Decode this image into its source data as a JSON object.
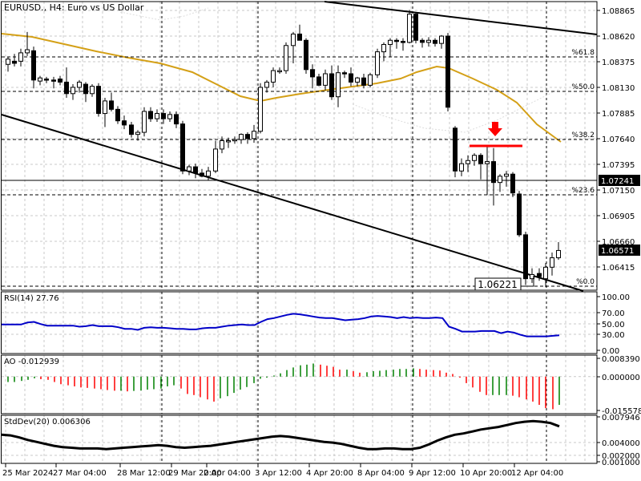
{
  "header": {
    "title": "EURUSD., H4:  Euro vs US Dollar"
  },
  "colors": {
    "background": "#ffffff",
    "grid": "#c8c8c8",
    "candle_bull": "#ffffff",
    "candle_bear": "#000000",
    "ma": "#d4a017",
    "rsi": "#0000c8",
    "ao_up": "#008000",
    "ao_down": "#ff0000",
    "stddev": "#000000",
    "arrow": "#ff0000"
  },
  "main_panel": {
    "price_axis": [
      "1.08865",
      "1.08620",
      "1.08375",
      "1.08130",
      "1.07885",
      "1.07640",
      "1.07395",
      "1.07150",
      "1.06905",
      "1.06660",
      "1.06415"
    ],
    "current_price_tag": "1.06571",
    "hline_tag": "1.07241",
    "low_label": "1.06221",
    "fib_levels": [
      {
        "label": "%61.8",
        "price": 1.0842
      },
      {
        "label": "%50.0",
        "price": 1.0809
      },
      {
        "label": "%38.2",
        "price": 1.0763
      },
      {
        "label": "%23.6",
        "price": 1.071
      },
      {
        "label": "%0.0",
        "price": 1.0623
      }
    ]
  },
  "rsi_panel": {
    "label": "RSI(14) 27.76",
    "axis": [
      "100.00",
      "70.00",
      "50.00",
      "30.00",
      "0.00"
    ]
  },
  "ao_panel": {
    "label": "AO -0.012939",
    "axis": [
      "0.008390",
      "0.000000",
      "-0.015578"
    ]
  },
  "stddev_panel": {
    "label": "StdDev(20) 0.006306",
    "axis": [
      "0.007946",
      "0.004000",
      "0.002000",
      "0.001000"
    ]
  },
  "time_axis": [
    "25 Mar 2024",
    "27 Mar 04:00",
    "28 Mar 12:00",
    "29 Mar 20:00",
    "2 Apr 04:00",
    "3 Apr 12:00",
    "4 Apr 20:00",
    "8 Apr 04:00",
    "9 Apr 12:00",
    "10 Apr 20:00",
    "12 Apr 04:00"
  ],
  "chart_data": [
    {
      "type": "candlestick",
      "title": "EURUSD., H4: Euro vs US Dollar",
      "xlabel": "Time",
      "ylabel": "Price",
      "ylim": [
        1.0618,
        1.0895
      ],
      "x_ticks": [
        "25 Mar 2024",
        "27 Mar 04:00",
        "28 Mar 12:00",
        "29 Mar 20:00",
        "2 Apr 04:00",
        "3 Apr 12:00",
        "4 Apr 20:00",
        "8 Apr 04:00",
        "9 Apr 12:00",
        "10 Apr 20:00",
        "12 Apr 04:00"
      ],
      "y_ticks": [
        1.08865,
        1.0862,
        1.08375,
        1.0813,
        1.07885,
        1.0764,
        1.07395,
        1.0715,
        1.06905,
        1.0666,
        1.06415
      ],
      "last_price": 1.06571,
      "horizontal_line": 1.07241,
      "annotated_low": 1.06221,
      "fibonacci": {
        "61.8": 1.0842,
        "50.0": 1.0809,
        "38.2": 1.0763,
        "23.6": 1.071,
        "0.0": 1.0623
      },
      "candles": [
        {
          "o": 1.0835,
          "h": 1.0842,
          "l": 1.0828,
          "c": 1.084
        },
        {
          "o": 1.0838,
          "h": 1.0845,
          "l": 1.0833,
          "c": 1.0836
        },
        {
          "o": 1.0838,
          "h": 1.085,
          "l": 1.0833,
          "c": 1.0846
        },
        {
          "o": 1.0846,
          "h": 1.0866,
          "l": 1.0843,
          "c": 1.0849
        },
        {
          "o": 1.0848,
          "h": 1.0852,
          "l": 1.0812,
          "c": 1.082
        },
        {
          "o": 1.0819,
          "h": 1.0824,
          "l": 1.0815,
          "c": 1.0822
        },
        {
          "o": 1.0821,
          "h": 1.0823,
          "l": 1.0817,
          "c": 1.082
        },
        {
          "o": 1.082,
          "h": 1.0823,
          "l": 1.0812,
          "c": 1.0819
        },
        {
          "o": 1.0821,
          "h": 1.0824,
          "l": 1.0815,
          "c": 1.0818
        },
        {
          "o": 1.0818,
          "h": 1.0832,
          "l": 1.0803,
          "c": 1.0807
        },
        {
          "o": 1.0807,
          "h": 1.0816,
          "l": 1.0801,
          "c": 1.0813
        },
        {
          "o": 1.0813,
          "h": 1.082,
          "l": 1.0808,
          "c": 1.0818
        },
        {
          "o": 1.0816,
          "h": 1.0818,
          "l": 1.0799,
          "c": 1.0807
        },
        {
          "o": 1.0807,
          "h": 1.0816,
          "l": 1.0804,
          "c": 1.0814
        },
        {
          "o": 1.0814,
          "h": 1.0817,
          "l": 1.0785,
          "c": 1.0788
        },
        {
          "o": 1.0788,
          "h": 1.0803,
          "l": 1.0775,
          "c": 1.08
        },
        {
          "o": 1.08,
          "h": 1.0808,
          "l": 1.079,
          "c": 1.0792
        },
        {
          "o": 1.0792,
          "h": 1.0795,
          "l": 1.0778,
          "c": 1.0781
        },
        {
          "o": 1.0781,
          "h": 1.0786,
          "l": 1.0773,
          "c": 1.0777
        },
        {
          "o": 1.0777,
          "h": 1.078,
          "l": 1.0765,
          "c": 1.0768
        },
        {
          "o": 1.0768,
          "h": 1.0772,
          "l": 1.0762,
          "c": 1.077
        },
        {
          "o": 1.077,
          "h": 1.0794,
          "l": 1.0766,
          "c": 1.079
        },
        {
          "o": 1.079,
          "h": 1.0794,
          "l": 1.078,
          "c": 1.0783
        },
        {
          "o": 1.0783,
          "h": 1.0792,
          "l": 1.078,
          "c": 1.0788
        },
        {
          "o": 1.0788,
          "h": 1.0792,
          "l": 1.0778,
          "c": 1.0783
        },
        {
          "o": 1.0783,
          "h": 1.079,
          "l": 1.078,
          "c": 1.0787
        },
        {
          "o": 1.0787,
          "h": 1.079,
          "l": 1.0774,
          "c": 1.0778
        },
        {
          "o": 1.0778,
          "h": 1.0781,
          "l": 1.073,
          "c": 1.0733
        },
        {
          "o": 1.0733,
          "h": 1.0739,
          "l": 1.0729,
          "c": 1.0737
        },
        {
          "o": 1.0737,
          "h": 1.074,
          "l": 1.0726,
          "c": 1.0731
        },
        {
          "o": 1.0731,
          "h": 1.0735,
          "l": 1.0727,
          "c": 1.0728
        },
        {
          "o": 1.0728,
          "h": 1.0737,
          "l": 1.0724,
          "c": 1.0733
        },
        {
          "o": 1.0733,
          "h": 1.0762,
          "l": 1.0731,
          "c": 1.0754
        },
        {
          "o": 1.0754,
          "h": 1.0766,
          "l": 1.075,
          "c": 1.0762
        },
        {
          "o": 1.0762,
          "h": 1.0765,
          "l": 1.0755,
          "c": 1.0762
        },
        {
          "o": 1.0762,
          "h": 1.0766,
          "l": 1.0759,
          "c": 1.0763
        },
        {
          "o": 1.0763,
          "h": 1.0769,
          "l": 1.0759,
          "c": 1.0768
        },
        {
          "o": 1.0768,
          "h": 1.077,
          "l": 1.0759,
          "c": 1.0764
        },
        {
          "o": 1.0764,
          "h": 1.0777,
          "l": 1.076,
          "c": 1.0771
        },
        {
          "o": 1.0771,
          "h": 1.0817,
          "l": 1.0769,
          "c": 1.0813
        },
        {
          "o": 1.0813,
          "h": 1.082,
          "l": 1.0808,
          "c": 1.0818
        },
        {
          "o": 1.0818,
          "h": 1.0832,
          "l": 1.0813,
          "c": 1.0829
        },
        {
          "o": 1.0829,
          "h": 1.0832,
          "l": 1.0826,
          "c": 1.0829
        },
        {
          "o": 1.0829,
          "h": 1.0856,
          "l": 1.0826,
          "c": 1.0853
        },
        {
          "o": 1.0853,
          "h": 1.0866,
          "l": 1.0836,
          "c": 1.0864
        },
        {
          "o": 1.0864,
          "h": 1.0873,
          "l": 1.0858,
          "c": 1.0858
        },
        {
          "o": 1.0858,
          "h": 1.086,
          "l": 1.0826,
          "c": 1.083
        },
        {
          "o": 1.083,
          "h": 1.0835,
          "l": 1.0812,
          "c": 1.0823
        },
        {
          "o": 1.0823,
          "h": 1.0826,
          "l": 1.0814,
          "c": 1.0815
        },
        {
          "o": 1.0815,
          "h": 1.083,
          "l": 1.081,
          "c": 1.0826
        },
        {
          "o": 1.0826,
          "h": 1.0834,
          "l": 1.0801,
          "c": 1.0804
        },
        {
          "o": 1.0804,
          "h": 1.0834,
          "l": 1.0794,
          "c": 1.0827
        },
        {
          "o": 1.0827,
          "h": 1.0829,
          "l": 1.0822,
          "c": 1.0826
        },
        {
          "o": 1.0826,
          "h": 1.0832,
          "l": 1.0814,
          "c": 1.0818
        },
        {
          "o": 1.0818,
          "h": 1.0823,
          "l": 1.0814,
          "c": 1.0822
        },
        {
          "o": 1.0822,
          "h": 1.0826,
          "l": 1.0812,
          "c": 1.0815
        },
        {
          "o": 1.0815,
          "h": 1.0827,
          "l": 1.0813,
          "c": 1.0825
        },
        {
          "o": 1.0825,
          "h": 1.085,
          "l": 1.0822,
          "c": 1.0847
        },
        {
          "o": 1.0847,
          "h": 1.0856,
          "l": 1.0838,
          "c": 1.0854
        },
        {
          "o": 1.0854,
          "h": 1.086,
          "l": 1.0842,
          "c": 1.0858
        },
        {
          "o": 1.0858,
          "h": 1.086,
          "l": 1.085,
          "c": 1.0857
        },
        {
          "o": 1.0857,
          "h": 1.086,
          "l": 1.0848,
          "c": 1.0856
        },
        {
          "o": 1.0856,
          "h": 1.0887,
          "l": 1.0855,
          "c": 1.0883
        },
        {
          "o": 1.0883,
          "h": 1.0885,
          "l": 1.0855,
          "c": 1.0858
        },
        {
          "o": 1.0858,
          "h": 1.086,
          "l": 1.0851,
          "c": 1.0856
        },
        {
          "o": 1.0856,
          "h": 1.0861,
          "l": 1.0852,
          "c": 1.0858
        },
        {
          "o": 1.0858,
          "h": 1.086,
          "l": 1.0852,
          "c": 1.0855
        },
        {
          "o": 1.0855,
          "h": 1.0863,
          "l": 1.085,
          "c": 1.0862
        },
        {
          "o": 1.0862,
          "h": 1.0865,
          "l": 1.079,
          "c": 1.0794
        },
        {
          "o": 1.0774,
          "h": 1.0776,
          "l": 1.0727,
          "c": 1.0733
        },
        {
          "o": 1.0733,
          "h": 1.0745,
          "l": 1.0728,
          "c": 1.074
        },
        {
          "o": 1.074,
          "h": 1.0748,
          "l": 1.0732,
          "c": 1.0743
        },
        {
          "o": 1.0743,
          "h": 1.075,
          "l": 1.0738,
          "c": 1.0748
        },
        {
          "o": 1.0748,
          "h": 1.075,
          "l": 1.0725,
          "c": 1.074
        },
        {
          "o": 1.074,
          "h": 1.0757,
          "l": 1.071,
          "c": 1.0742
        },
        {
          "o": 1.0742,
          "h": 1.0755,
          "l": 1.07,
          "c": 1.0722
        },
        {
          "o": 1.0722,
          "h": 1.073,
          "l": 1.0713,
          "c": 1.0728
        },
        {
          "o": 1.0728,
          "h": 1.0733,
          "l": 1.0718,
          "c": 1.073
        },
        {
          "o": 1.073,
          "h": 1.0732,
          "l": 1.0708,
          "c": 1.0712
        },
        {
          "o": 1.0711,
          "h": 1.0714,
          "l": 1.067,
          "c": 1.0672
        },
        {
          "o": 1.0672,
          "h": 1.0675,
          "l": 1.0624,
          "c": 1.063
        },
        {
          "o": 1.063,
          "h": 1.064,
          "l": 1.0626,
          "c": 1.0634
        },
        {
          "o": 1.0635,
          "h": 1.064,
          "l": 1.0628,
          "c": 1.0632
        },
        {
          "o": 1.063,
          "h": 1.0645,
          "l": 1.0622,
          "c": 1.0641
        },
        {
          "o": 1.0641,
          "h": 1.0655,
          "l": 1.0633,
          "c": 1.065
        },
        {
          "o": 1.065,
          "h": 1.0665,
          "l": 1.0648,
          "c": 1.0657
        }
      ]
    },
    {
      "type": "line",
      "title": "RSI(14) 27.76",
      "ylim": [
        0,
        100
      ],
      "y_ticks": [
        100,
        70,
        50,
        30,
        0
      ],
      "values": [
        48,
        48,
        48,
        48,
        52,
        53,
        49,
        46,
        46,
        46,
        46,
        46,
        44,
        45,
        47,
        45,
        45,
        45,
        43,
        40,
        40,
        38,
        42,
        43,
        42,
        42,
        41,
        40,
        40,
        39,
        39,
        41,
        42,
        42,
        44,
        46,
        47,
        48,
        47,
        47,
        53,
        58,
        60,
        63,
        66,
        68,
        67,
        65,
        63,
        61,
        60,
        60,
        58,
        56,
        57,
        58,
        60,
        63,
        64,
        63,
        62,
        60,
        62,
        60,
        61,
        60,
        60,
        61,
        60,
        44,
        40,
        35,
        35,
        35,
        36,
        36,
        36,
        32,
        35,
        33,
        29,
        26,
        26,
        26,
        26,
        27,
        28
      ]
    },
    {
      "type": "bar",
      "title": "AO -0.012939",
      "ylim": [
        -0.015578,
        0.00839
      ],
      "values": [
        -0.0025,
        -0.0025,
        -0.002,
        -0.0015,
        -0.0008,
        -0.0012,
        -0.0015,
        -0.0025,
        -0.0035,
        -0.004,
        -0.0045,
        -0.005,
        -0.0052,
        -0.0055,
        -0.0058,
        -0.0062,
        -0.0065,
        -0.0065,
        -0.0068,
        -0.0066,
        -0.0064,
        -0.006,
        -0.0058,
        -0.0055,
        -0.0045,
        -0.004,
        -0.0055,
        -0.008,
        -0.0085,
        -0.0095,
        -0.0105,
        -0.0115,
        -0.01,
        -0.009,
        -0.0075,
        -0.006,
        -0.0048,
        -0.003,
        -0.001,
        -0.0005,
        0.0005,
        0.0015,
        0.003,
        0.0042,
        0.0052,
        0.0055,
        0.006,
        0.0055,
        0.005,
        0.0045,
        0.0032,
        0.0032,
        0.0025,
        0.0018,
        0.002,
        0.0025,
        0.0027,
        0.003,
        0.0032,
        0.0035,
        0.0035,
        0.0038,
        0.0035,
        0.0032,
        0.003,
        0.0028,
        0.0018,
        0.0012,
        -0.0005,
        -0.003,
        -0.005,
        -0.007,
        -0.0085,
        -0.0085,
        -0.0085,
        -0.0085,
        -0.0088,
        -0.0095,
        -0.0105,
        -0.0115,
        -0.013,
        -0.0145,
        -0.015,
        -0.013
      ]
    },
    {
      "type": "line",
      "title": "StdDev(20) 0.006306",
      "ylim": [
        0.0008,
        0.0082
      ],
      "y_ticks": [
        0.007946,
        0.004,
        0.002,
        0.001
      ],
      "values": [
        0.0052,
        0.0051,
        0.0048,
        0.0044,
        0.0041,
        0.0038,
        0.0035,
        0.0033,
        0.0032,
        0.0031,
        0.0031,
        0.0031,
        0.003,
        0.0031,
        0.0032,
        0.0033,
        0.0034,
        0.0035,
        0.0036,
        0.0035,
        0.0033,
        0.0032,
        0.0033,
        0.0034,
        0.0035,
        0.0037,
        0.0039,
        0.0041,
        0.0043,
        0.0045,
        0.0047,
        0.0049,
        0.005,
        0.0049,
        0.0047,
        0.0045,
        0.0043,
        0.0041,
        0.004,
        0.0038,
        0.0035,
        0.0032,
        0.003,
        0.003,
        0.0031,
        0.0031,
        0.003,
        0.003,
        0.0032,
        0.0037,
        0.0043,
        0.0048,
        0.0052,
        0.0054,
        0.0057,
        0.006,
        0.0062,
        0.0064,
        0.0067,
        0.007,
        0.0072,
        0.0073,
        0.0072,
        0.007,
        0.0065
      ]
    }
  ]
}
